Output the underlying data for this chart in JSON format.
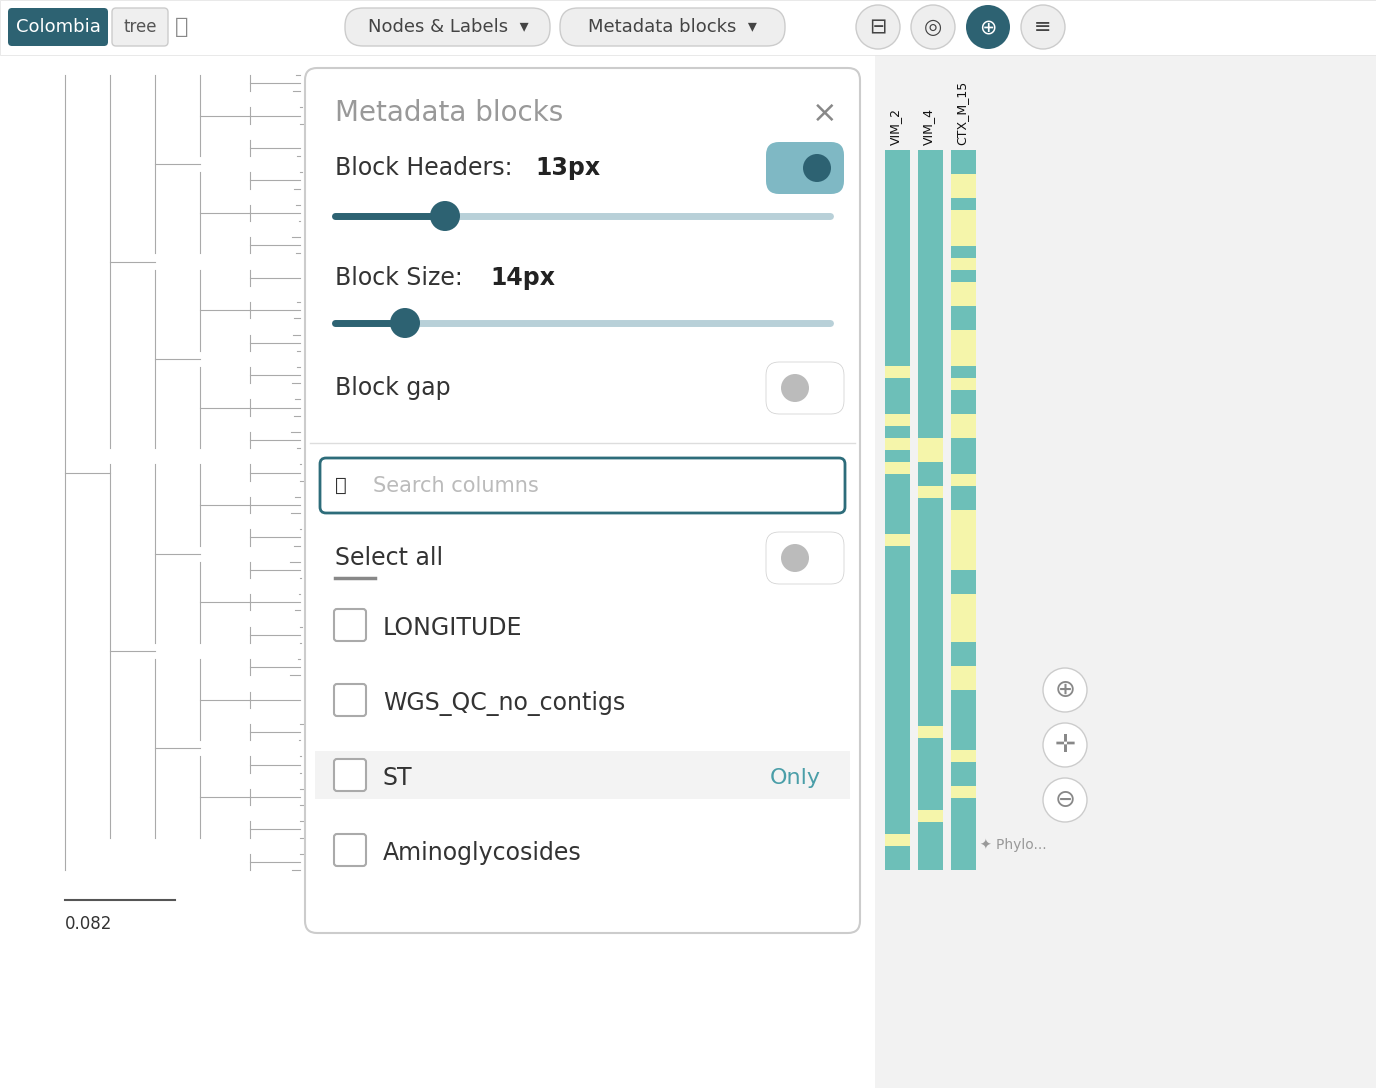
{
  "bg_color": "#f2f2f2",
  "white": "#ffffff",
  "colombia_btn_color": "#2d6272",
  "colombia_text": "Colombia",
  "tree_text": "tree",
  "nodes_labels_text": "Nodes & Labels",
  "metadata_blocks_text": "Metadata blocks",
  "modal_title": "Metadata blocks",
  "block_headers_label": "Block Headers: ",
  "block_headers_bold": "13px",
  "block_size_label": "Block Size: ",
  "block_size_bold": "14px",
  "block_gap_label": "Block gap",
  "search_placeholder": "Search columns",
  "select_all_text": "Select all",
  "checkboxes": [
    "LONGITUDE",
    "WGS_QC_no_contigs",
    "ST",
    "Aminoglycosides"
  ],
  "st_only_text": "Only",
  "col_names": [
    "VIM_2",
    "VIM_4",
    "CTX_M_15"
  ],
  "scale_text": "0.082",
  "teal_color": "#6dbfb8",
  "yellow_color": "#f5f5aa",
  "toggle_on_bg": "#7fb8c4",
  "toggle_on_knob": "#2d6272",
  "toggle_off_bg": "#d0d0d0",
  "toggle_off_knob": "#aaaaaa",
  "search_border_color": "#2d6c7a",
  "only_text_color": "#4a9ea8",
  "modal_border_color": "#cccccc",
  "separator_color": "#dddddd",
  "tree_line_color": "#aaaaaa",
  "checkbox_border": "#aaaaaa"
}
